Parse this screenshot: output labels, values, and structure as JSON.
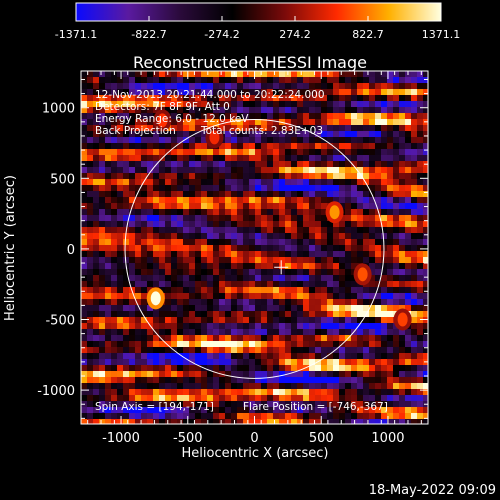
{
  "colorbar": {
    "ticks": [
      "-1371.1",
      "-822.7",
      "-274.2",
      "274.2",
      "822.7",
      "1371.1"
    ],
    "colors": [
      "#0a0aff",
      "#5a1aa0",
      "#2a0a3a",
      "#000000",
      "#7a0a0a",
      "#ff2a00",
      "#ffb000",
      "#ffffe0"
    ]
  },
  "chart_data": {
    "type": "heatmap",
    "title": "Reconstructed RHESSI Image",
    "xlabel": "Heliocentric X (arcsec)",
    "ylabel": "Heliocentric Y (arcsec)",
    "xlim": [
      -1300,
      1300
    ],
    "ylim": [
      -1240,
      1260
    ],
    "xticks": [
      "-1000",
      "-500",
      "0",
      "500",
      "1000"
    ],
    "yticks": [
      "1000",
      "500",
      "0",
      "-500",
      "-1000"
    ],
    "value_range": [
      -1371.1,
      1371.1
    ],
    "solar_limb_radius": 970,
    "center_marker": [
      200,
      -130
    ],
    "hotspots": [
      {
        "x": -740,
        "y": -350,
        "value": 1371
      },
      {
        "x": 600,
        "y": 260,
        "value": 900
      },
      {
        "x": 810,
        "y": -180,
        "value": 700
      },
      {
        "x": 1110,
        "y": -500,
        "value": 650
      },
      {
        "x": -690,
        "y": 910,
        "value": 600
      },
      {
        "x": -300,
        "y": 790,
        "value": 550
      }
    ],
    "annotations": {
      "line1": "12-Nov-2013 20:21:44.000 to 20:22:24.000",
      "line2": "Detectors: 7F 8F 9F, Att 0",
      "line3": "Energy Range: 6.0 - 12.0 keV",
      "line4a": "Back Projection",
      "line4b": "Total counts: 2.83E+03",
      "bottom_left": "Spin Axis = [194,-171]",
      "bottom_right": "Flare Position = [-746,-367]"
    }
  },
  "footer": {
    "timestamp": "18-May-2022 09:09"
  }
}
